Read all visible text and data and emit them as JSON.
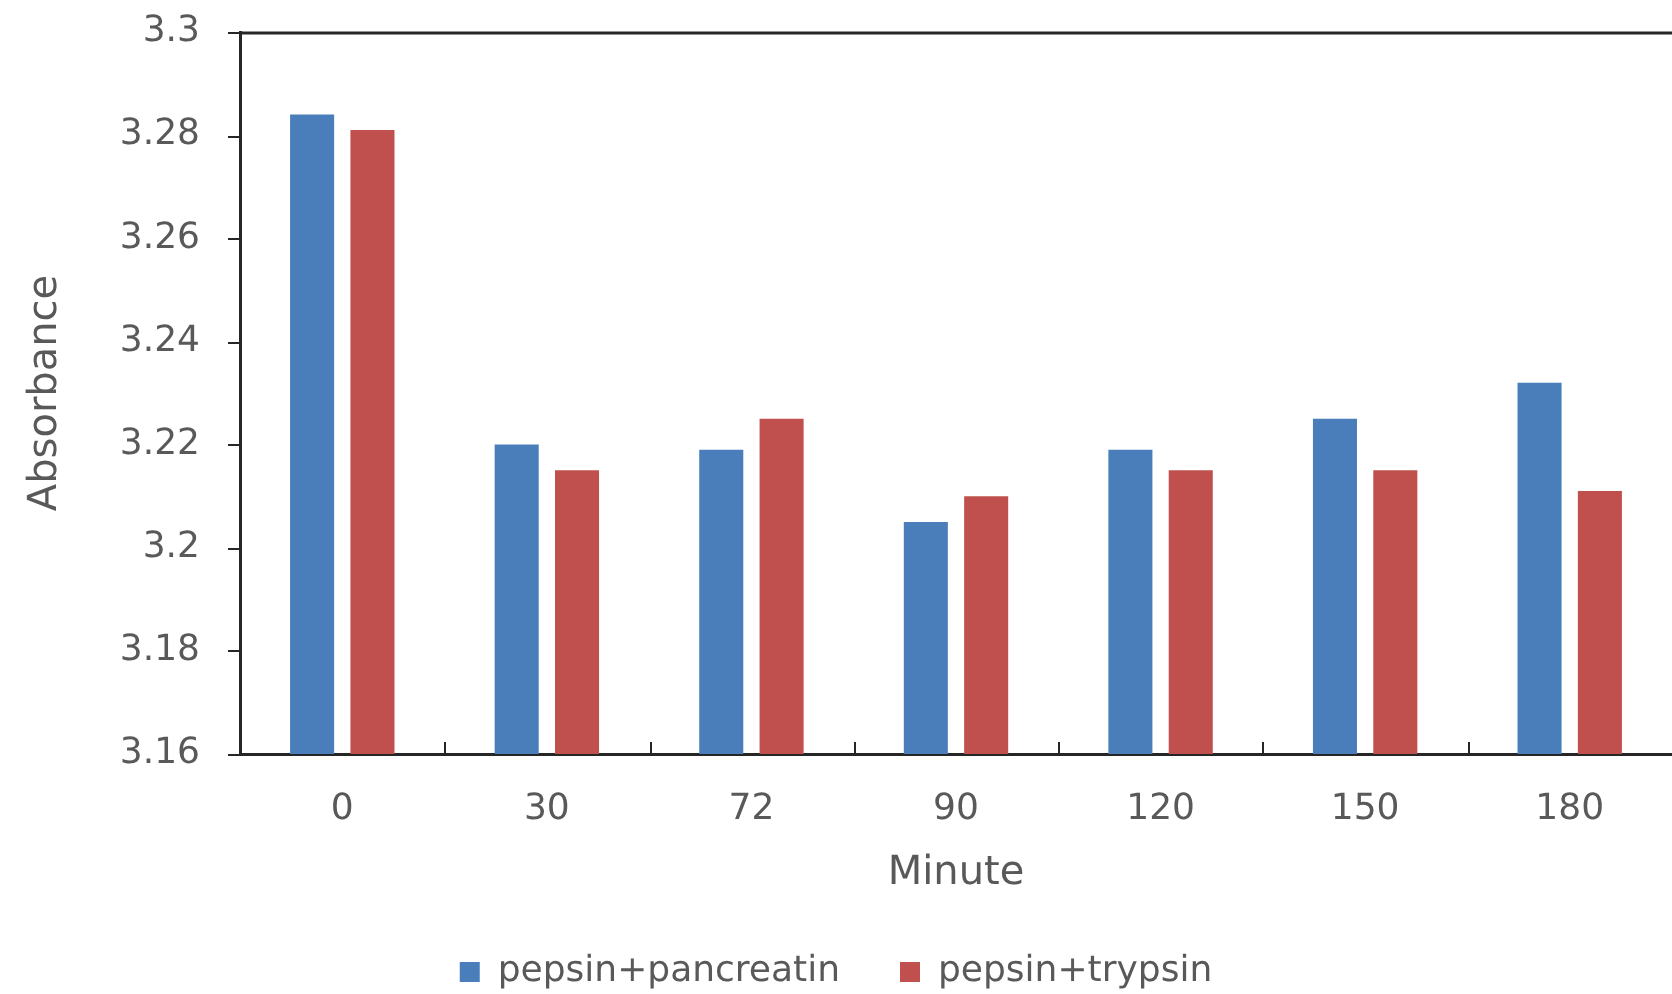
{
  "chart_data": {
    "type": "bar",
    "xlabel": "Minute",
    "ylabel": "Absorbance",
    "categories": [
      "0",
      "30",
      "72",
      "90",
      "120",
      "150",
      "180"
    ],
    "series": [
      {
        "name": "pepsin+pancreatin",
        "color": "#4a7ebb",
        "values": [
          3.284,
          3.22,
          3.219,
          3.205,
          3.219,
          3.225,
          3.232
        ]
      },
      {
        "name": "pepsin+trypsin",
        "color": "#c0504d",
        "values": [
          3.281,
          3.215,
          3.225,
          3.21,
          3.215,
          3.215,
          3.211
        ]
      }
    ],
    "ylim": [
      3.16,
      3.3
    ],
    "yticks": [
      3.16,
      3.18,
      3.2,
      3.22,
      3.24,
      3.26,
      3.28,
      3.3
    ],
    "grid": false,
    "legend": "bottom"
  }
}
